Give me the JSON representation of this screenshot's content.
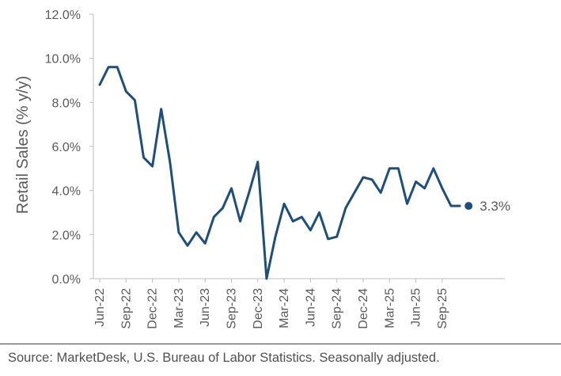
{
  "chart_data": {
    "type": "line",
    "title": "",
    "xlabel": "",
    "ylabel": "Retail Sales (% y/y)",
    "ylim": [
      0,
      12
    ],
    "y_tick_labels": [
      "0.0%",
      "2.0%",
      "4.0%",
      "6.0%",
      "8.0%",
      "10.0%",
      "12.0%"
    ],
    "y_tick_values": [
      0,
      2,
      4,
      6,
      8,
      10,
      12
    ],
    "x_tick_labels": [
      "Jun-22",
      "Sep-22",
      "Dec-22",
      "Mar-23",
      "Jun-23",
      "Sep-23",
      "Dec-23",
      "Mar-24",
      "Jun-24",
      "Sep-24",
      "Dec-24",
      "Mar-25",
      "Jun-25",
      "Sep-25"
    ],
    "x": [
      "Jun-22",
      "Jul-22",
      "Aug-22",
      "Sep-22",
      "Oct-22",
      "Nov-22",
      "Dec-22",
      "Jan-23",
      "Feb-23",
      "Mar-23",
      "Apr-23",
      "May-23",
      "Jun-23",
      "Jul-23",
      "Aug-23",
      "Sep-23",
      "Oct-23",
      "Nov-23",
      "Dec-23",
      "Jan-24",
      "Feb-24",
      "Mar-24",
      "Apr-24",
      "May-24",
      "Jun-24",
      "Jul-24",
      "Aug-24",
      "Sep-24",
      "Oct-24",
      "Nov-24",
      "Dec-24",
      "Jan-25",
      "Feb-25",
      "Mar-25",
      "Apr-25",
      "May-25",
      "Jun-25",
      "Jul-25",
      "Aug-25",
      "Sep-25",
      "Oct-25",
      "Nov-25",
      "Dec-25"
    ],
    "series": [
      {
        "values": [
          8.8,
          9.6,
          9.6,
          8.5,
          8.1,
          5.5,
          5.1,
          7.7,
          5.3,
          2.1,
          1.5,
          2.1,
          1.6,
          2.8,
          3.2,
          4.1,
          2.6,
          3.9,
          5.3,
          0.0,
          1.9,
          3.4,
          2.6,
          2.8,
          2.2,
          3.0,
          1.8,
          1.9,
          3.2,
          3.9,
          4.6,
          4.5,
          3.9,
          5.0,
          5.0,
          3.4,
          4.4,
          4.1,
          5.0,
          4.1,
          3.3,
          3.3,
          3.3
        ],
        "color": "#1f4e79"
      }
    ],
    "end_label": "3.3%",
    "grid": false,
    "legend": "none",
    "source": "Source: MarketDesk, U.S. Bureau of Labor Statistics. Seasonally adjusted."
  }
}
